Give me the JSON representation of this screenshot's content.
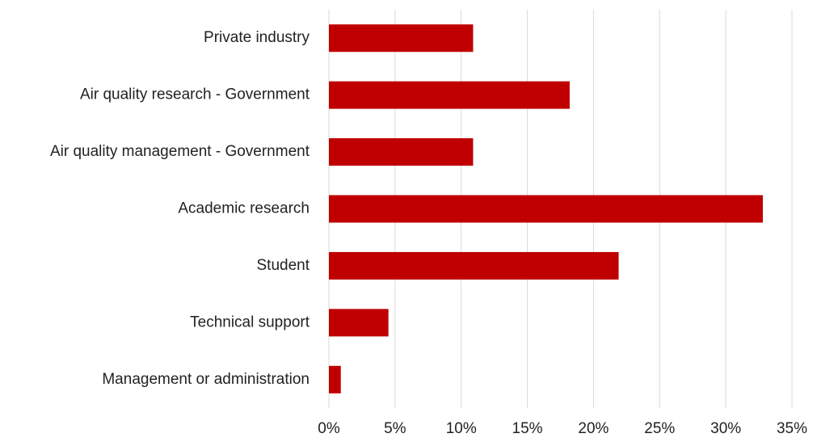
{
  "chart_data": {
    "type": "hbar",
    "categories": [
      "Private industry",
      "Air quality research - Government",
      "Air quality management - Government",
      "Academic research",
      "Student",
      "Technical support",
      "Management or administration"
    ],
    "values": [
      10.9,
      18.2,
      10.9,
      32.8,
      21.9,
      4.5,
      0.9
    ],
    "color": "#c00000",
    "xlim": [
      0,
      35
    ],
    "xticks": [
      {
        "value": 0,
        "label": "0%"
      },
      {
        "value": 5,
        "label": "5%"
      },
      {
        "value": 10,
        "label": "10%"
      },
      {
        "value": 15,
        "label": "15%"
      },
      {
        "value": 20,
        "label": "20%"
      },
      {
        "value": 25,
        "label": "25%"
      },
      {
        "value": 30,
        "label": "30%"
      },
      {
        "value": 35,
        "label": "35%"
      }
    ],
    "grid": true
  }
}
